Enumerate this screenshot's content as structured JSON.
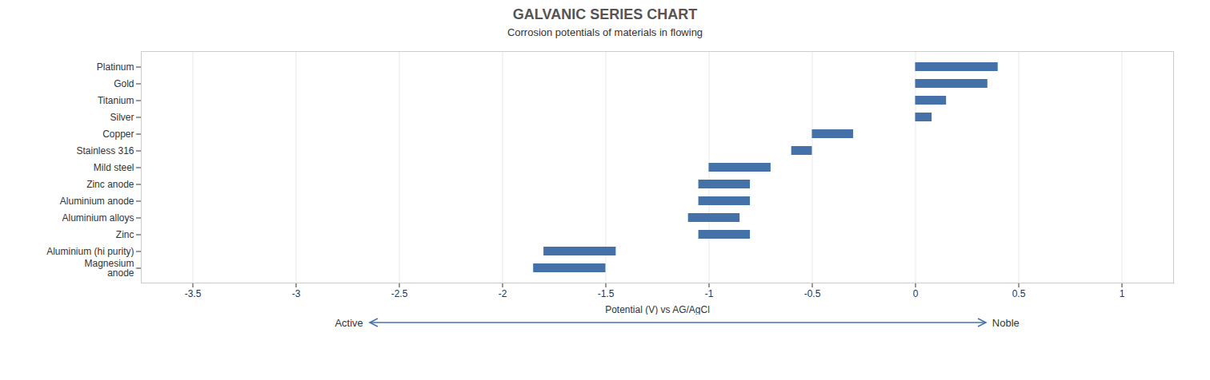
{
  "chart_data": {
    "type": "bar",
    "orientation": "horizontal",
    "title": "GALVANIC SERIES CHART",
    "subtitle": "Corrosion potentials of materials in flowing",
    "xlabel": "Potential (V) vs AG/AgCl",
    "categories": [
      "Platinum",
      "Gold",
      "Titanium",
      "Silver",
      "Copper",
      "Stainless 316",
      "Mild steel",
      "Zinc anode",
      "Aluminium anode",
      "Aluminium alloys",
      "Zinc",
      "Aluminium (hi purity)",
      "Magnesium\nanode"
    ],
    "values": [
      [
        0.0,
        0.4
      ],
      [
        0.0,
        0.35
      ],
      [
        0.0,
        0.15
      ],
      [
        0.0,
        0.08
      ],
      [
        -0.5,
        -0.3
      ],
      [
        -0.6,
        -0.5
      ],
      [
        -1.0,
        -0.7
      ],
      [
        -1.05,
        -0.8
      ],
      [
        -1.05,
        -0.8
      ],
      [
        -1.1,
        -0.85
      ],
      [
        -1.05,
        -0.8
      ],
      [
        -1.8,
        -1.45
      ],
      [
        -1.85,
        -1.5
      ]
    ],
    "color": "#4472a8",
    "xlim": [
      -3.75,
      1.25
    ],
    "xticks": [
      -3.5,
      -3.0,
      -2.5,
      -2.0,
      -1.5,
      -1.0,
      -0.5,
      0.0,
      0.5,
      1.0
    ],
    "grid": true,
    "annotations": [
      "Active",
      "Noble"
    ]
  }
}
